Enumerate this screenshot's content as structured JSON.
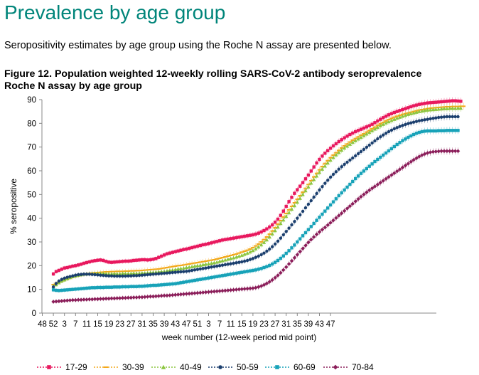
{
  "page": {
    "heading": "Prevalence by age group",
    "intro": "Seropositivity estimates by age group using the Roche N assay are presented below.",
    "figure_title_line1": "Figure 12. Population weighted 12-weekly rolling SARS-CoV-2 antibody seroprevalence",
    "figure_title_line2": "Roche N assay by age group"
  },
  "chart_data": {
    "type": "line",
    "xlabel": "week number  (12-week period mid point)",
    "ylabel": "% seropositive",
    "ylim": [
      0,
      90
    ],
    "yticks": [
      0,
      10,
      20,
      30,
      40,
      50,
      60,
      70,
      80,
      90
    ],
    "xtick_labels": [
      "48",
      "52",
      "3",
      "7",
      "11",
      "15",
      "19",
      "23",
      "27",
      "31",
      "35",
      "39",
      "43",
      "47",
      "51",
      "3",
      "7",
      "11",
      "15",
      "19",
      "23",
      "27",
      "31",
      "35",
      "39",
      "43",
      "47"
    ],
    "x_start_tick": "52",
    "points_per_tick": 4,
    "grid": false,
    "legend_position": "bottom",
    "error_bars": true,
    "series": [
      {
        "name": "17-29",
        "color": "#e8185e",
        "marker": "square",
        "values": [
          16.5,
          17.5,
          18,
          18.5,
          19,
          19.2,
          19.5,
          19.8,
          20,
          20.3,
          20.6,
          21,
          21.3,
          21.6,
          21.9,
          22.1,
          22.3,
          22.4,
          22.2,
          21.8,
          21.5,
          21.4,
          21.5,
          21.6,
          21.7,
          21.8,
          21.9,
          21.9,
          22,
          22.2,
          22.3,
          22.4,
          22.5,
          22.5,
          22.4,
          22.5,
          22.7,
          23,
          23.5,
          24,
          24.5,
          25,
          25.3,
          25.6,
          25.9,
          26.2,
          26.5,
          26.8,
          27,
          27.3,
          27.6,
          27.9,
          28.2,
          28.5,
          28.8,
          29,
          29.3,
          29.6,
          29.9,
          30.2,
          30.5,
          30.8,
          31,
          31.2,
          31.4,
          31.6,
          31.8,
          32,
          32.2,
          32.4,
          32.6,
          32.8,
          33,
          33.3,
          33.7,
          34.2,
          34.8,
          35.5,
          36.3,
          37.2,
          38.3,
          39.6,
          41.2,
          43,
          45,
          47,
          48.8,
          50.5,
          52,
          53.5,
          55,
          56.6,
          58.2,
          59.9,
          61.6,
          63.3,
          64.8,
          66.2,
          67.4,
          68.5,
          69.5,
          70.5,
          71.4,
          72.3,
          73.1,
          73.9,
          74.6,
          75.3,
          75.9,
          76.5,
          77,
          77.5,
          78,
          78.5,
          79,
          79.6,
          80.3,
          81,
          81.7,
          82.4,
          83,
          83.6,
          84.1,
          84.6,
          85,
          85.4,
          85.8,
          86.2,
          86.6,
          87,
          87.4,
          87.7,
          88,
          88.2,
          88.4,
          88.6,
          88.7,
          88.8,
          88.9,
          89,
          89.1,
          89.2,
          89.3,
          89.4,
          89.5,
          89.5,
          89.4,
          89.3
        ]
      },
      {
        "name": "30-39",
        "color": "#f4a81b",
        "marker": "dash",
        "values": [
          12,
          12.5,
          13,
          13.5,
          14,
          14.4,
          14.8,
          15.1,
          15.4,
          15.7,
          16,
          16.3,
          16.5,
          16.7,
          16.9,
          17,
          17.1,
          17.2,
          17.3,
          17.4,
          17.4,
          17.5,
          17.5,
          17.6,
          17.6,
          17.6,
          17.7,
          17.7,
          17.8,
          17.8,
          17.9,
          17.9,
          18,
          18.1,
          18.2,
          18.3,
          18.4,
          18.5,
          18.6,
          18.8,
          19,
          19.2,
          19.4,
          19.6,
          19.8,
          20,
          20.1,
          20.3,
          20.5,
          20.7,
          20.9,
          21.1,
          21.3,
          21.5,
          21.7,
          21.9,
          22.1,
          22.3,
          22.5,
          22.8,
          23.1,
          23.4,
          23.7,
          24,
          24.3,
          24.6,
          24.9,
          25.3,
          25.7,
          26.1,
          26.5,
          27,
          27.6,
          28.3,
          29.1,
          30,
          31,
          32.1,
          33.3,
          34.6,
          36,
          37.5,
          39,
          40.5,
          42,
          43.5,
          45,
          46.5,
          48,
          49.5,
          51,
          52.6,
          54.2,
          55.8,
          57.4,
          58.9,
          60.4,
          61.8,
          63.1,
          64.3,
          65.5,
          66.6,
          67.6,
          68.6,
          69.6,
          70.5,
          71.3,
          72.1,
          72.9,
          73.6,
          74.3,
          75,
          75.6,
          76.3,
          77,
          77.7,
          78.4,
          79.1,
          79.8,
          80.4,
          81,
          81.6,
          82.1,
          82.6,
          83,
          83.4,
          83.8,
          84.1,
          84.4,
          84.7,
          85,
          85.3,
          85.6,
          85.8,
          86,
          86.2,
          86.4,
          86.5,
          86.6,
          86.7,
          86.8,
          86.9,
          87,
          87,
          87.1,
          87.1,
          87.1,
          87.2,
          87.2
        ]
      },
      {
        "name": "40-49",
        "color": "#8cc63f",
        "marker": "triangle",
        "values": [
          11.5,
          12,
          12.8,
          13.5,
          14,
          14.5,
          15,
          15.4,
          15.7,
          16,
          16.2,
          16.4,
          16.5,
          16.6,
          16.7,
          16.7,
          16.7,
          16.7,
          16.7,
          16.6,
          16.6,
          16.6,
          16.6,
          16.6,
          16.6,
          16.7,
          16.7,
          16.7,
          16.7,
          16.8,
          16.8,
          16.8,
          16.9,
          16.9,
          17,
          17.1,
          17.2,
          17.3,
          17.4,
          17.5,
          17.6,
          17.8,
          18,
          18.2,
          18.4,
          18.6,
          18.8,
          19,
          19.2,
          19.4,
          19.6,
          19.8,
          20,
          20.2,
          20.4,
          20.6,
          20.8,
          21,
          21.2,
          21.5,
          21.8,
          22.1,
          22.4,
          22.7,
          23,
          23.3,
          23.6,
          24,
          24.4,
          24.8,
          25.3,
          25.8,
          26.4,
          27.1,
          27.9,
          28.8,
          29.8,
          30.9,
          32.1,
          33.4,
          34.8,
          36.3,
          37.8,
          39.3,
          40.8,
          42.3,
          43.8,
          45.3,
          46.8,
          48.4,
          50,
          51.6,
          53.2,
          54.8,
          56.3,
          57.8,
          59.3,
          60.7,
          62,
          63.3,
          64.5,
          65.6,
          66.7,
          67.7,
          68.7,
          69.6,
          70.4,
          71.2,
          72,
          72.7,
          73.4,
          74.1,
          74.8,
          75.5,
          76.2,
          76.9,
          77.6,
          78.3,
          79,
          79.6,
          80.2,
          80.7,
          81.2,
          81.7,
          82.2,
          82.6,
          83,
          83.4,
          83.8,
          84.1,
          84.4,
          84.7,
          85,
          85.2,
          85.4,
          85.6,
          85.7,
          85.8,
          85.9,
          86,
          86.1,
          86.2,
          86.2,
          86.3,
          86.3,
          86.3,
          86.4,
          86.4
        ]
      },
      {
        "name": "50-59",
        "color": "#1b3f6e",
        "marker": "circle",
        "values": [
          11,
          12.5,
          13.5,
          14.2,
          14.7,
          15.1,
          15.4,
          15.7,
          16,
          16.2,
          16.3,
          16.4,
          16.4,
          16.4,
          16.3,
          16.2,
          16.1,
          16,
          15.9,
          15.8,
          15.7,
          15.7,
          15.6,
          15.6,
          15.6,
          15.6,
          15.6,
          15.7,
          15.7,
          15.8,
          15.8,
          15.9,
          16,
          16.1,
          16.2,
          16.3,
          16.4,
          16.5,
          16.6,
          16.7,
          16.8,
          16.9,
          17,
          17.1,
          17.2,
          17.3,
          17.4,
          17.5,
          17.6,
          17.8,
          18,
          18.2,
          18.4,
          18.6,
          18.8,
          19,
          19.2,
          19.4,
          19.6,
          19.8,
          20,
          20.2,
          20.4,
          20.6,
          20.8,
          21,
          21.2,
          21.4,
          21.6,
          21.9,
          22.2,
          22.6,
          23,
          23.5,
          24,
          24.6,
          25.3,
          26.1,
          27,
          28,
          29.1,
          30.3,
          31.6,
          33,
          34.4,
          35.8,
          37.2,
          38.6,
          40,
          41.4,
          42.9,
          44.4,
          45.9,
          47.4,
          48.9,
          50.4,
          51.9,
          53.3,
          54.7,
          56,
          57.3,
          58.5,
          59.6,
          60.7,
          61.7,
          62.7,
          63.6,
          64.5,
          65.4,
          66.3,
          67.2,
          68.1,
          69,
          69.9,
          70.8,
          71.7,
          72.6,
          73.5,
          74.3,
          75.1,
          75.8,
          76.5,
          77.1,
          77.7,
          78.2,
          78.7,
          79.1,
          79.5,
          79.9,
          80.2,
          80.5,
          80.8,
          81.1,
          81.3,
          81.5,
          81.7,
          81.9,
          82.1,
          82.3,
          82.5,
          82.6,
          82.7,
          82.8,
          82.8,
          82.8,
          82.8,
          82.8
        ]
      },
      {
        "name": "60-69",
        "color": "#17a2b8",
        "marker": "square",
        "values": [
          9.8,
          9.6,
          9.5,
          9.6,
          9.7,
          9.8,
          9.9,
          10,
          10.1,
          10.2,
          10.3,
          10.4,
          10.5,
          10.6,
          10.7,
          10.7,
          10.8,
          10.8,
          10.8,
          10.9,
          10.9,
          10.9,
          11,
          11,
          11,
          11.1,
          11.1,
          11.1,
          11.2,
          11.2,
          11.2,
          11.3,
          11.3,
          11.4,
          11.5,
          11.6,
          11.7,
          11.7,
          11.8,
          11.9,
          12,
          12.1,
          12.2,
          12.3,
          12.4,
          12.6,
          12.8,
          13,
          13.2,
          13.4,
          13.6,
          13.8,
          14,
          14.2,
          14.4,
          14.6,
          14.8,
          15,
          15.2,
          15.4,
          15.6,
          15.8,
          16,
          16.2,
          16.4,
          16.6,
          16.8,
          17,
          17.2,
          17.4,
          17.6,
          17.8,
          18,
          18.2,
          18.5,
          18.8,
          19.2,
          19.6,
          20.1,
          20.7,
          21.4,
          22.2,
          23.1,
          24.1,
          25.2,
          26.3,
          27.5,
          28.7,
          30,
          31.3,
          32.6,
          33.9,
          35.2,
          36.5,
          37.8,
          39.1,
          40.4,
          41.7,
          43,
          44.3,
          45.6,
          46.9,
          48.2,
          49.5,
          50.7,
          51.9,
          53.1,
          54.3,
          55.5,
          56.7,
          57.8,
          58.9,
          59.9,
          60.9,
          61.9,
          62.9,
          63.9,
          64.8,
          65.7,
          66.6,
          67.5,
          68.4,
          69.3,
          70.2,
          71.1,
          71.9,
          72.7,
          73.4,
          74.1,
          74.7,
          75.3,
          75.8,
          76.2,
          76.5,
          76.7,
          76.8,
          76.8,
          76.8,
          76.8,
          76.9,
          76.9,
          76.9,
          77,
          77,
          77,
          77,
          77
        ]
      },
      {
        "name": "70-84",
        "color": "#8b1e5a",
        "marker": "diamond",
        "values": [
          4.8,
          4.9,
          5,
          5.1,
          5.2,
          5.3,
          5.4,
          5.5,
          5.5,
          5.6,
          5.6,
          5.7,
          5.7,
          5.8,
          5.8,
          5.9,
          5.9,
          6,
          6,
          6.1,
          6.1,
          6.2,
          6.2,
          6.3,
          6.3,
          6.4,
          6.4,
          6.5,
          6.5,
          6.6,
          6.6,
          6.7,
          6.7,
          6.8,
          6.9,
          7,
          7,
          7.1,
          7.2,
          7.3,
          7.4,
          7.4,
          7.5,
          7.6,
          7.7,
          7.8,
          7.9,
          8,
          8.1,
          8.2,
          8.3,
          8.4,
          8.5,
          8.6,
          8.7,
          8.8,
          8.9,
          9,
          9.1,
          9.2,
          9.3,
          9.4,
          9.5,
          9.6,
          9.7,
          9.8,
          9.9,
          10,
          10.1,
          10.2,
          10.3,
          10.4,
          10.5,
          10.7,
          11,
          11.4,
          11.9,
          12.5,
          13.2,
          14,
          14.9,
          15.9,
          17,
          18.2,
          19.4,
          20.7,
          22,
          23.3,
          24.6,
          25.9,
          27.2,
          28.5,
          29.8,
          31,
          32.1,
          33.2,
          34.2,
          35.2,
          36.1,
          37.1,
          38.1,
          39.1,
          40.1,
          41.1,
          42.1,
          43.1,
          44.1,
          45.1,
          46.1,
          47.1,
          48.1,
          49.1,
          50,
          50.9,
          51.8,
          52.6,
          53.4,
          54.2,
          55,
          55.8,
          56.6,
          57.4,
          58.2,
          59,
          59.8,
          60.6,
          61.4,
          62.2,
          63,
          63.8,
          64.6,
          65.3,
          66,
          66.6,
          67.1,
          67.5,
          67.8,
          68,
          68.1,
          68.2,
          68.3,
          68.3,
          68.3,
          68.3,
          68.3,
          68.3,
          68.3
        ]
      }
    ]
  }
}
